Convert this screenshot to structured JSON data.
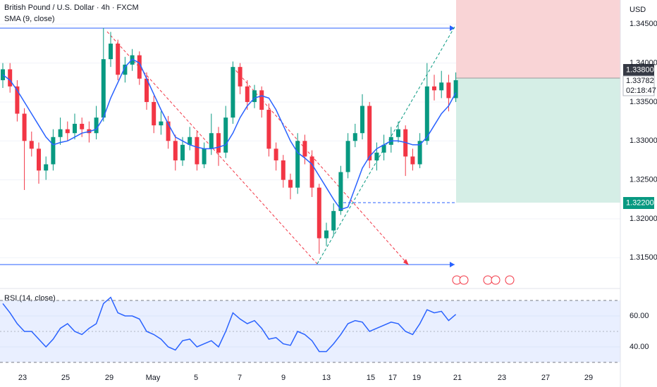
{
  "chart_data": [
    {
      "type": "candlestick",
      "title": "British Pound / U.S. Dollar · 4h · FXCM",
      "open": [
        1.3378,
        1.3392,
        1.337,
        1.3335,
        1.33,
        1.329,
        1.3262,
        1.327,
        1.3305,
        1.3315,
        1.331,
        1.3322,
        1.3315,
        1.331,
        1.333,
        1.3405,
        1.3425,
        1.3385,
        1.3398,
        1.341,
        1.338,
        1.335,
        1.332,
        1.3325,
        1.33,
        1.3275,
        1.3295,
        1.3305,
        1.327,
        1.329,
        1.331,
        1.3285,
        1.333,
        1.3395,
        1.337,
        1.335,
        1.3365,
        1.334,
        1.329,
        1.3275,
        1.325,
        1.324,
        1.33,
        1.328,
        1.324,
        1.3175,
        1.3185,
        1.321,
        1.326,
        1.33,
        1.331,
        1.3345,
        1.3275,
        1.3285,
        1.3295,
        1.3305,
        1.3315,
        1.328,
        1.327,
        1.33,
        1.337,
        1.3365,
        1.3375,
        1.3355
      ],
      "high": [
        1.34,
        1.34,
        1.3378,
        1.3342,
        1.3312,
        1.3298,
        1.328,
        1.3315,
        1.333,
        1.3325,
        1.3335,
        1.333,
        1.3325,
        1.3345,
        1.3445,
        1.344,
        1.343,
        1.3408,
        1.3418,
        1.3415,
        1.3388,
        1.3358,
        1.3338,
        1.3332,
        1.3308,
        1.3305,
        1.3318,
        1.3312,
        1.3298,
        1.3335,
        1.3318,
        1.3345,
        1.3402,
        1.34,
        1.3378,
        1.3372,
        1.337,
        1.3348,
        1.3298,
        1.3282,
        1.3258,
        1.331,
        1.3308,
        1.3288,
        1.3245,
        1.3195,
        1.322,
        1.3268,
        1.331,
        1.3322,
        1.336,
        1.335,
        1.3298,
        1.3308,
        1.3318,
        1.3325,
        1.332,
        1.329,
        1.331,
        1.34,
        1.3385,
        1.339,
        1.3385,
        1.3388
      ],
      "low": [
        1.3368,
        1.3362,
        1.3325,
        1.3237,
        1.328,
        1.3245,
        1.325,
        1.3262,
        1.3295,
        1.33,
        1.3302,
        1.3305,
        1.3298,
        1.3302,
        1.3325,
        1.3395,
        1.3378,
        1.3375,
        1.339,
        1.3372,
        1.334,
        1.331,
        1.3308,
        1.329,
        1.3262,
        1.3268,
        1.3288,
        1.3262,
        1.3265,
        1.3282,
        1.3268,
        1.3278,
        1.3322,
        1.336,
        1.334,
        1.3342,
        1.333,
        1.328,
        1.3262,
        1.324,
        1.3225,
        1.3232,
        1.327,
        1.3228,
        1.3155,
        1.3165,
        1.3178,
        1.3205,
        1.3252,
        1.3292,
        1.3302,
        1.3265,
        1.3262,
        1.3275,
        1.3285,
        1.3298,
        1.3255,
        1.3262,
        1.3265,
        1.3295,
        1.3352,
        1.3355,
        1.3338,
        1.335
      ],
      "close": [
        1.3392,
        1.337,
        1.3335,
        1.33,
        1.329,
        1.3262,
        1.327,
        1.3305,
        1.3315,
        1.331,
        1.3322,
        1.3315,
        1.331,
        1.333,
        1.3405,
        1.3425,
        1.3385,
        1.3398,
        1.341,
        1.338,
        1.335,
        1.332,
        1.3325,
        1.33,
        1.3275,
        1.3295,
        1.3305,
        1.327,
        1.329,
        1.331,
        1.3285,
        1.333,
        1.3395,
        1.337,
        1.335,
        1.3365,
        1.334,
        1.329,
        1.3275,
        1.325,
        1.324,
        1.33,
        1.328,
        1.324,
        1.3175,
        1.3185,
        1.321,
        1.326,
        1.33,
        1.331,
        1.3345,
        1.3275,
        1.3285,
        1.3295,
        1.3305,
        1.3315,
        1.328,
        1.327,
        1.33,
        1.337,
        1.3365,
        1.3375,
        1.3355,
        1.3378
      ],
      "up_color": "#089981",
      "down_color": "#f23645",
      "series": [
        {
          "name": "SMA (9, close)",
          "color": "#2962ff",
          "values": [
            1.3385,
            1.3378,
            1.3365,
            1.335,
            1.3335,
            1.332,
            1.3305,
            1.3295,
            1.3298,
            1.33,
            1.3305,
            1.331,
            1.3312,
            1.3315,
            1.333,
            1.3355,
            1.3375,
            1.3395,
            1.3405,
            1.34,
            1.338,
            1.336,
            1.334,
            1.3322,
            1.3305,
            1.33,
            1.3295,
            1.3292,
            1.329,
            1.329,
            1.3292,
            1.3295,
            1.331,
            1.333,
            1.3345,
            1.3355,
            1.3358,
            1.3355,
            1.334,
            1.332,
            1.33,
            1.3285,
            1.3278,
            1.327,
            1.3255,
            1.324,
            1.3225,
            1.3212,
            1.3215,
            1.324,
            1.3265,
            1.328,
            1.329,
            1.3295,
            1.33,
            1.33,
            1.3298,
            1.3295,
            1.3295,
            1.3305,
            1.332,
            1.3335,
            1.3345,
            1.3362
          ]
        }
      ],
      "ylim": [
        1.3115,
        1.3481
      ],
      "yticks": [
        {
          "value": 1.345,
          "label": "1.34500"
        },
        {
          "value": 1.34,
          "label": "1.34000"
        },
        {
          "value": 1.335,
          "label": "1.33500"
        },
        {
          "value": 1.33,
          "label": "1.33000"
        },
        {
          "value": 1.325,
          "label": "1.32500"
        },
        {
          "value": 1.32,
          "label": "1.32000"
        },
        {
          "value": 1.315,
          "label": "1.31500"
        }
      ],
      "currency": "USD",
      "stop_label": "1.33800",
      "last_price_label": "1.33782",
      "countdown": "02:18:47",
      "target_label": "1.32200"
    },
    {
      "type": "line",
      "series": [
        {
          "name": "RSI (14, close)",
          "color": "#2962ff",
          "values": [
            68,
            62,
            55,
            50,
            50,
            45,
            40,
            45,
            52,
            55,
            50,
            48,
            52,
            55,
            68,
            72,
            62,
            60,
            60,
            58,
            50,
            48,
            45,
            40,
            38,
            44,
            45,
            40,
            42,
            44,
            40,
            50,
            62,
            58,
            55,
            57,
            52,
            45,
            46,
            42,
            41,
            50,
            48,
            44,
            37,
            37,
            42,
            48,
            55,
            57,
            56,
            50,
            52,
            54,
            56,
            55,
            50,
            48,
            55,
            64,
            62,
            63,
            57,
            61
          ]
        }
      ],
      "ylim": [
        30,
        73.2
      ],
      "yticks": [
        {
          "value": 60,
          "label": "60.00"
        },
        {
          "value": 40,
          "label": "40.00"
        }
      ],
      "bands": [
        30,
        70
      ],
      "x_labels": [
        "23",
        "25",
        "29",
        "May",
        "5",
        "7",
        "9",
        "13",
        "15",
        "17",
        "19",
        "21",
        "23",
        "27",
        "29"
      ]
    }
  ]
}
